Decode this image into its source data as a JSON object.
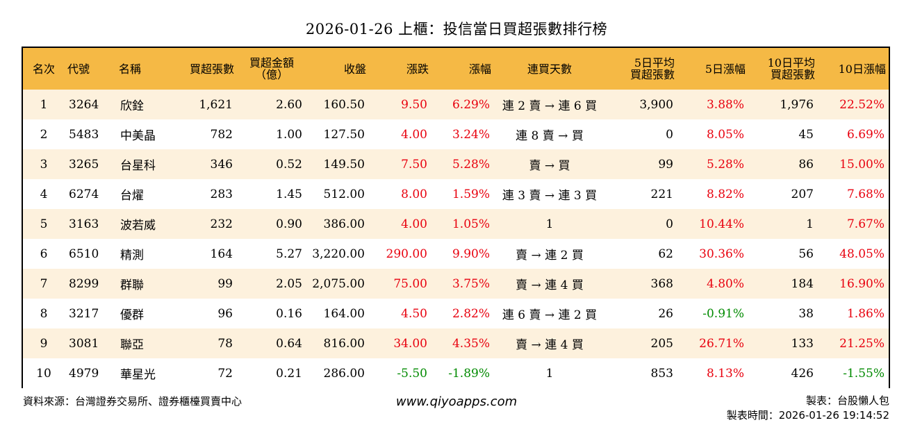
{
  "title": "2026-01-26 上櫃：投信當日買超張數排行榜",
  "headers": {
    "rank": "名次",
    "code": "代號",
    "name": "名稱",
    "net_buy_lots": "買超張數",
    "net_buy_amount_line1": "買超金額",
    "net_buy_amount_line2": "（億）",
    "close": "收盤",
    "change": "漲跌",
    "pct": "漲幅",
    "streak": "連買天數",
    "avg5_line1": "5日平均",
    "avg5_line2": "買超張數",
    "pct5": "5日漲幅",
    "avg10_line1": "10日平均",
    "avg10_line2": "買超張數",
    "pct10": "10日漲幅"
  },
  "rows": [
    {
      "rank": "1",
      "code": "3264",
      "name": "欣銓",
      "lots": "1,621",
      "amount": "2.60",
      "close": "160.50",
      "change": "9.50",
      "pct": "6.29%",
      "streak": "連 2 賣 → 連 6 買",
      "avg5": "3,900",
      "pct5": "3.88%",
      "avg10": "1,976",
      "pct10": "22.52%"
    },
    {
      "rank": "2",
      "code": "5483",
      "name": "中美晶",
      "lots": "782",
      "amount": "1.00",
      "close": "127.50",
      "change": "4.00",
      "pct": "3.24%",
      "streak": "連 8 賣 → 買",
      "avg5": "0",
      "pct5": "8.05%",
      "avg10": "45",
      "pct10": "6.69%"
    },
    {
      "rank": "3",
      "code": "3265",
      "name": "台星科",
      "lots": "346",
      "amount": "0.52",
      "close": "149.50",
      "change": "7.50",
      "pct": "5.28%",
      "streak": "賣 → 買",
      "avg5": "99",
      "pct5": "5.28%",
      "avg10": "86",
      "pct10": "15.00%"
    },
    {
      "rank": "4",
      "code": "6274",
      "name": "台燿",
      "lots": "283",
      "amount": "1.45",
      "close": "512.00",
      "change": "8.00",
      "pct": "1.59%",
      "streak": "連 3 賣 → 連 3 買",
      "avg5": "221",
      "pct5": "8.82%",
      "avg10": "207",
      "pct10": "7.68%"
    },
    {
      "rank": "5",
      "code": "3163",
      "name": "波若威",
      "lots": "232",
      "amount": "0.90",
      "close": "386.00",
      "change": "4.00",
      "pct": "1.05%",
      "streak": "1",
      "avg5": "0",
      "pct5": "10.44%",
      "avg10": "1",
      "pct10": "7.67%"
    },
    {
      "rank": "6",
      "code": "6510",
      "name": "精測",
      "lots": "164",
      "amount": "5.27",
      "close": "3,220.00",
      "change": "290.00",
      "pct": "9.90%",
      "streak": "賣 → 連 2 買",
      "avg5": "62",
      "pct5": "30.36%",
      "avg10": "56",
      "pct10": "48.05%"
    },
    {
      "rank": "7",
      "code": "8299",
      "name": "群聯",
      "lots": "99",
      "amount": "2.05",
      "close": "2,075.00",
      "change": "75.00",
      "pct": "3.75%",
      "streak": "賣 → 連 4 買",
      "avg5": "368",
      "pct5": "4.80%",
      "avg10": "184",
      "pct10": "16.90%"
    },
    {
      "rank": "8",
      "code": "3217",
      "name": "優群",
      "lots": "96",
      "amount": "0.16",
      "close": "164.00",
      "change": "4.50",
      "pct": "2.82%",
      "streak": "連 6 賣 → 連 2 買",
      "avg5": "26",
      "pct5": "-0.91%",
      "avg10": "38",
      "pct10": "1.86%"
    },
    {
      "rank": "9",
      "code": "3081",
      "name": "聯亞",
      "lots": "78",
      "amount": "0.64",
      "close": "816.00",
      "change": "34.00",
      "pct": "4.35%",
      "streak": "賣 → 連 4 買",
      "avg5": "205",
      "pct5": "26.71%",
      "avg10": "133",
      "pct10": "21.25%"
    },
    {
      "rank": "10",
      "code": "4979",
      "name": "華星光",
      "lots": "72",
      "amount": "0.21",
      "close": "286.00",
      "change": "-5.50",
      "pct": "-1.89%",
      "streak": "1",
      "avg5": "853",
      "pct5": "8.13%",
      "avg10": "426",
      "pct10": "-1.55%"
    }
  ],
  "colors": {
    "header_bg": "#f5b945",
    "odd_row_bg": "#fdf1dd",
    "up": "#e8000e",
    "down": "#008a00"
  },
  "footer": {
    "source": "資料來源：台灣證券交易所、證券櫃檯買賣中心",
    "website": "www.qiyoapps.com",
    "author": "製表：台股懶人包",
    "timestamp": "製表時間：2026-01-26 19:14:52"
  }
}
